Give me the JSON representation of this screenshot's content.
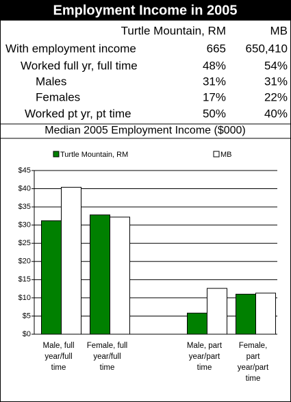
{
  "header": {
    "title": "Employment Income in 2005"
  },
  "table": {
    "columns": [
      "Turtle Mountain, RM",
      "MB"
    ],
    "rows": [
      [
        "With employment income",
        "665",
        "650,410"
      ],
      [
        "Worked full yr, full time",
        "48%",
        "54%"
      ],
      [
        "Males",
        "31%",
        "31%"
      ],
      [
        "Females",
        "17%",
        "22%"
      ],
      [
        "Worked pt yr, pt time",
        "50%",
        "40%"
      ]
    ]
  },
  "chart_data": {
    "type": "bar",
    "title": "Median 2005 Employment Income ($000)",
    "categories": [
      "Male, full year/full time",
      "Female, full year/full time",
      null,
      "Male, part year/part time",
      "Female, part year/part time"
    ],
    "series": [
      {
        "name": "Turtle Mountain, RM",
        "color": "#008000",
        "values": [
          31.2,
          32.8,
          null,
          5.8,
          11.0
        ]
      },
      {
        "name": "MB",
        "color": "#ffffff",
        "values": [
          40.4,
          32.2,
          null,
          12.6,
          11.3
        ]
      }
    ],
    "ylim": [
      0,
      45
    ],
    "yticks": [
      {
        "value": 0,
        "label": "$0"
      },
      {
        "value": 5,
        "label": "$5"
      },
      {
        "value": 10,
        "label": "$10"
      },
      {
        "value": 15,
        "label": "$15"
      },
      {
        "value": 20,
        "label": "$20"
      },
      {
        "value": 25,
        "label": "$25"
      },
      {
        "value": 30,
        "label": "$30"
      },
      {
        "value": 35,
        "label": "$35"
      },
      {
        "value": 40,
        "label": "$40"
      },
      {
        "value": 45,
        "label": "$45"
      }
    ],
    "grid": true,
    "legend": "top"
  }
}
